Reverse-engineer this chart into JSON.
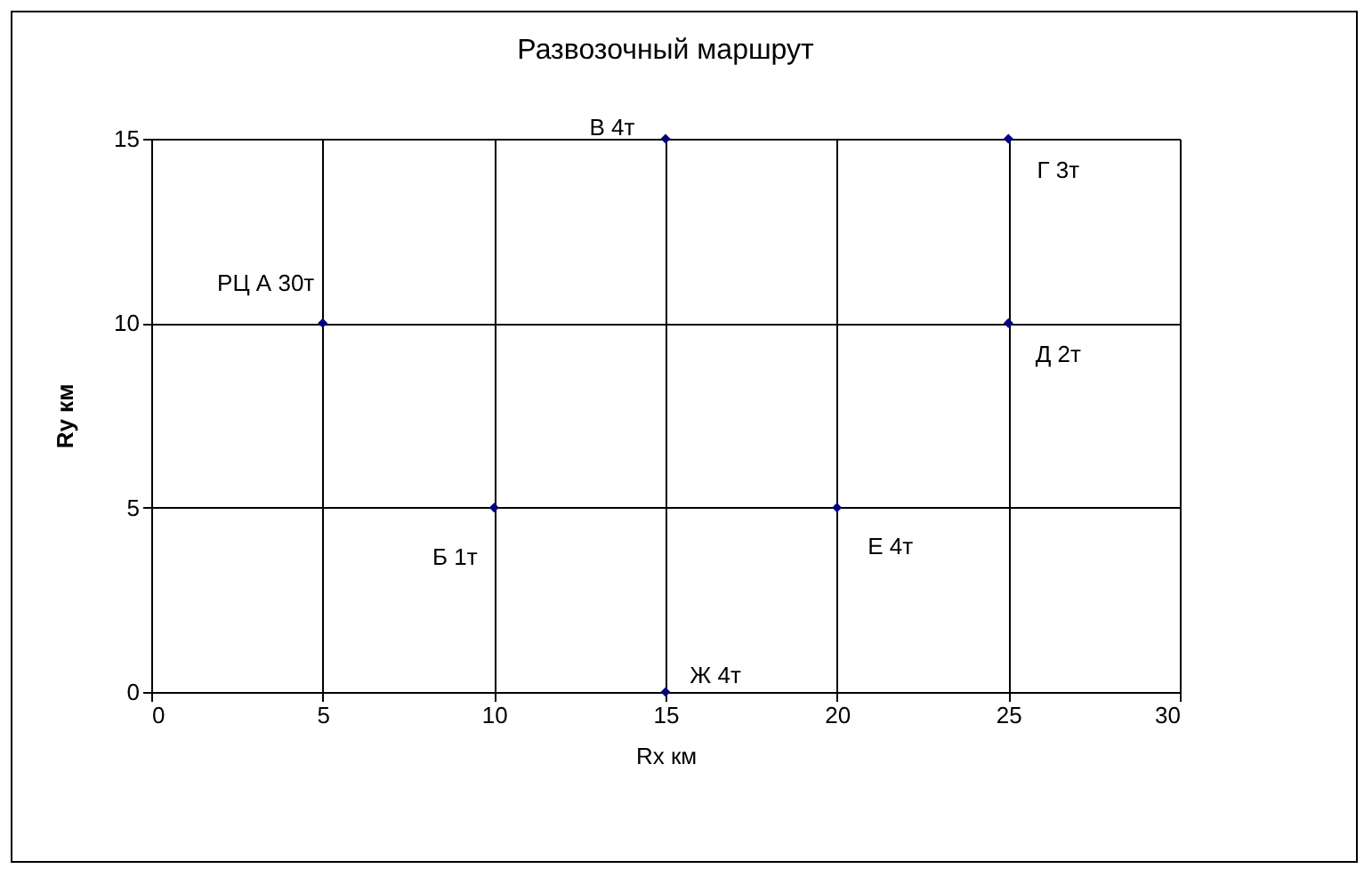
{
  "chart_data": {
    "type": "scatter",
    "title": "Развозочный маршрут",
    "xlabel": "Rx км",
    "ylabel": "Ry км",
    "x": [
      5,
      10,
      15,
      15,
      20,
      25,
      25
    ],
    "series": [
      {
        "color": "#000080",
        "values": [
          10,
          5,
          15,
          0,
          5,
          15,
          10
        ]
      }
    ],
    "xlim": [
      0,
      30
    ],
    "xticks": [
      0,
      5,
      10,
      15,
      20,
      25,
      30
    ],
    "ylim": [
      0,
      15
    ],
    "yticks": [
      0,
      5,
      10,
      15
    ],
    "grid": true,
    "marker": "diamond",
    "annotations": [
      {
        "text": "РЦ А 30т",
        "x": 5,
        "y": 10
      },
      {
        "text": "Б 1т",
        "x": 10,
        "y": 5
      },
      {
        "text": "В 4т",
        "x": 15,
        "y": 15
      },
      {
        "text": "Ж 4т",
        "x": 15,
        "y": 0
      },
      {
        "text": "Е 4т",
        "x": 20,
        "y": 5
      },
      {
        "text": "Г 3т",
        "x": 25,
        "y": 15
      },
      {
        "text": "Д 2т",
        "x": 25,
        "y": 10
      }
    ]
  }
}
